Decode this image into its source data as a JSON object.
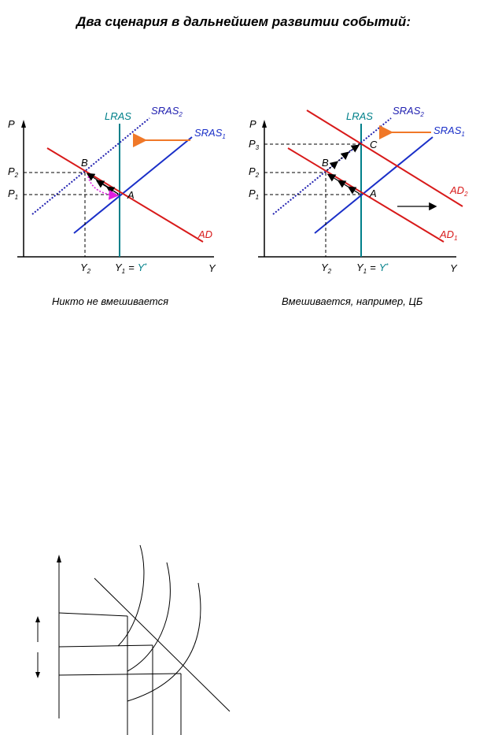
{
  "title": "Два сценария в дальнейшем развитии событий:",
  "left_panel": {
    "caption": "Никто не вмешивается",
    "axis_p": "P",
    "axis_y": "Y",
    "lras": "LRAS",
    "sras2": "SRAS",
    "sras2_sub": "2",
    "sras1": "SRAS",
    "sras1_sub": "1",
    "ad": "AD",
    "point_a": "A",
    "point_b": "B",
    "p1": "P",
    "p1_sub": "1",
    "p2": "P",
    "p2_sub": "2",
    "y2": "Y",
    "y2_sub": "2",
    "y1": "Y",
    "y1_sub": "1",
    "eq": "=",
    "ystar": "Y",
    "ystar_sup": "*"
  },
  "right_panel": {
    "caption": "Вмешивается, например, ЦБ",
    "axis_p": "P",
    "axis_y": "Y",
    "lras": "LRAS",
    "sras2": "SRAS",
    "sras2_sub": "2",
    "sras1": "SRAS",
    "sras1_sub": "1",
    "ad2": "AD",
    "ad2_sub": "2",
    "ad1": "AD",
    "ad1_sub": "1",
    "point_a": "A",
    "point_b": "B",
    "point_c": "C",
    "p1": "P",
    "p1_sub": "1",
    "p2": "P",
    "p2_sub": "2",
    "p3": "P",
    "p3_sub": "3",
    "y2": "Y",
    "y2_sub": "2",
    "y1": "Y",
    "y1_sub": "1",
    "eq": "=",
    "ystar": "Y",
    "ystar_sup": "*"
  },
  "colors": {
    "lras": "#00808a",
    "sras1": "#1a2fc8",
    "sras2": "#2020b0",
    "ad": "#d81a1a",
    "shift_arrow": "#f07828",
    "path_arrow": "#e020e0"
  }
}
